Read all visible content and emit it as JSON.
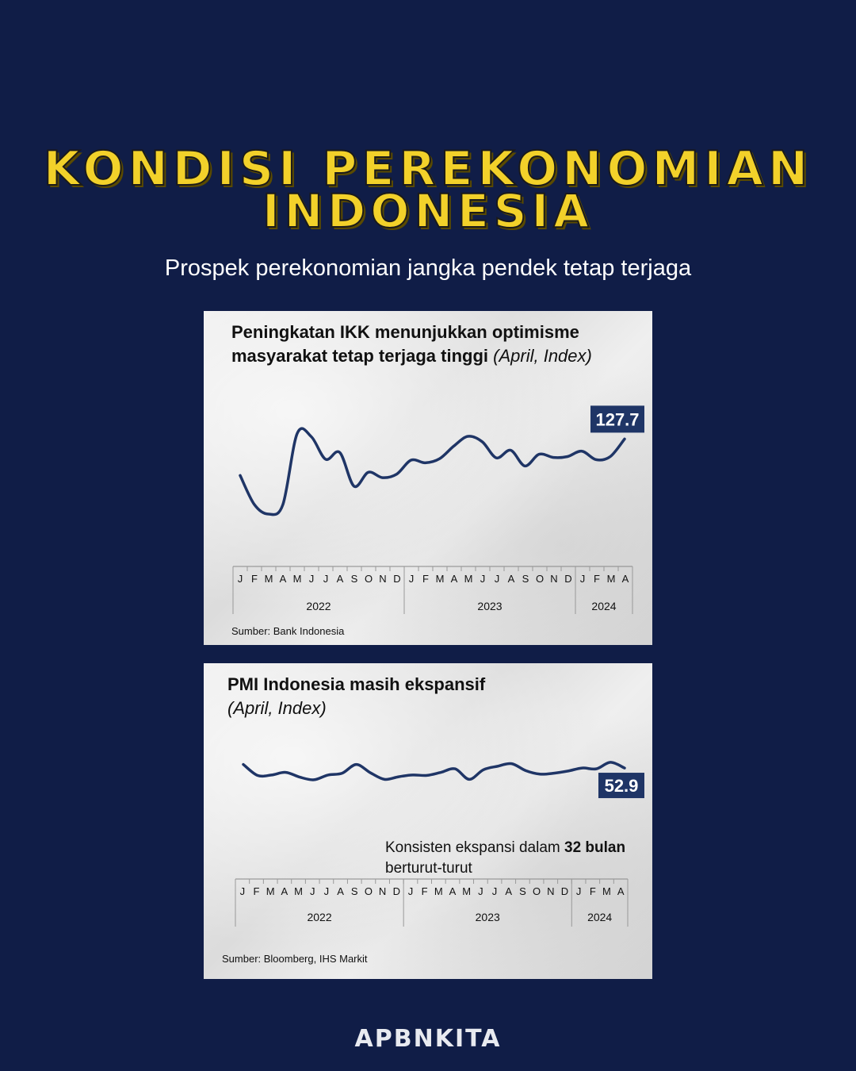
{
  "header": {
    "title_line1": "KONDISI PEREKONOMIAN",
    "title_line2": "INDONESIA",
    "subtitle": "Prospek perekonomian jangka pendek tetap terjaga"
  },
  "colors": {
    "background": "#101d47",
    "title": "#f2d12a",
    "line": "#1f3566",
    "label_box": "#1f3566"
  },
  "footer": {
    "logo": "APBNKITA"
  },
  "chart_data": [
    {
      "type": "line",
      "title": "Peningkatan IKK menunjukkan optimisme masyarakat tetap terjaga tinggi",
      "title_unit": "(April, Index)",
      "x": [
        "J",
        "F",
        "M",
        "A",
        "M",
        "J",
        "J",
        "A",
        "S",
        "O",
        "N",
        "D",
        "J",
        "F",
        "M",
        "A",
        "M",
        "J",
        "J",
        "A",
        "S",
        "O",
        "N",
        "D",
        "J",
        "F",
        "M",
        "A"
      ],
      "year_groups": [
        {
          "label": "2022",
          "count": 12
        },
        {
          "label": "2023",
          "count": 12
        },
        {
          "label": "2024",
          "count": 4
        }
      ],
      "series": [
        {
          "values": [
            119.6,
            113.1,
            111.0,
            113.1,
            128.9,
            128.2,
            123.2,
            124.7,
            117.2,
            120.3,
            119.1,
            119.9,
            123.0,
            122.4,
            123.3,
            126.1,
            128.3,
            127.1,
            123.5,
            125.2,
            121.7,
            124.3,
            123.6,
            123.8,
            125.0,
            123.1,
            123.8,
            127.7
          ]
        }
      ],
      "label_value": "127.7",
      "ylim": [
        105,
        135
      ],
      "source": "Sumber: Bank Indonesia"
    },
    {
      "type": "line",
      "title": "PMI Indonesia masih ekspansif",
      "title_unit": "(April, Index)",
      "x": [
        "J",
        "F",
        "M",
        "A",
        "M",
        "J",
        "J",
        "A",
        "S",
        "O",
        "N",
        "D",
        "J",
        "F",
        "M",
        "A",
        "M",
        "J",
        "J",
        "A",
        "S",
        "O",
        "N",
        "D",
        "J",
        "F",
        "M",
        "A"
      ],
      "year_groups": [
        {
          "label": "2022",
          "count": 12
        },
        {
          "label": "2023",
          "count": 12
        },
        {
          "label": "2024",
          "count": 4
        }
      ],
      "series": [
        {
          "values": [
            53.7,
            51.2,
            51.3,
            51.9,
            50.8,
            50.2,
            51.3,
            51.7,
            53.7,
            51.8,
            50.3,
            50.9,
            51.3,
            51.2,
            51.9,
            52.7,
            50.3,
            52.5,
            53.3,
            53.9,
            52.3,
            51.5,
            51.7,
            52.2,
            52.9,
            52.7,
            54.2,
            52.9
          ]
        }
      ],
      "label_value": "52.9",
      "note_text": "Konsisten ekspansi dalam ",
      "note_bold": "32 bulan",
      "note_text2": "berturut-turut",
      "ylim": [
        40,
        60
      ],
      "source": "Sumber: Bloomberg, IHS Markit"
    }
  ]
}
